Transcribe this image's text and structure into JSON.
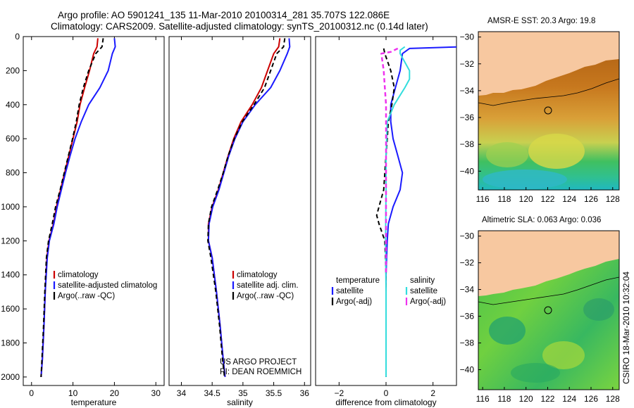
{
  "header": {
    "line1": "Argo profile: AO 5901241_135 11-Mar-2010 20100314_281 35.707S 122.086E",
    "line2": "Climatology: CARS2009. Satellite-adjusted climatology: synTS_20100312.nc (0.14d later)"
  },
  "colors": {
    "red": "#cc0000",
    "blue": "#1a1aff",
    "black": "#000000",
    "cyan": "#33dddd",
    "magenta": "#ee33ee",
    "land": "#f7c8a0"
  },
  "chart_data": [
    {
      "id": "temperature",
      "type": "line",
      "xlabel": "temperature",
      "ylabel": "",
      "xlim": [
        -2,
        32
      ],
      "ylim": [
        2050,
        0
      ],
      "xticks": [
        0,
        10,
        20,
        30
      ],
      "yticks": [
        0,
        200,
        400,
        600,
        800,
        1000,
        1200,
        1400,
        1600,
        1800,
        2000
      ],
      "legend": [
        "climatology",
        "satellite-adjusted climatolog",
        "Argo(..raw -QC)"
      ],
      "series": [
        {
          "name": "climatology",
          "color": "red",
          "dash": "",
          "x": [
            16.0,
            15.8,
            15.0,
            14.0,
            12.8,
            11.7,
            11.0,
            10.0,
            9.0,
            8.0,
            7.0,
            6.0,
            5.3,
            4.2,
            3.7,
            3.3,
            3.0,
            2.6,
            2.3
          ],
          "y": [
            10,
            60,
            100,
            200,
            300,
            400,
            500,
            600,
            700,
            800,
            900,
            1000,
            1100,
            1200,
            1300,
            1500,
            1700,
            1900,
            2000
          ]
        },
        {
          "name": "satellite-adjusted climatolog",
          "color": "blue",
          "dash": "",
          "x": [
            20.0,
            20.2,
            19.5,
            18.5,
            16.5,
            13.8,
            12.0,
            10.5,
            9.3,
            8.2,
            7.2,
            6.2,
            5.4,
            4.3,
            3.8,
            3.3,
            3.0,
            2.6,
            2.3
          ],
          "y": [
            10,
            60,
            100,
            200,
            300,
            400,
            500,
            600,
            700,
            800,
            900,
            1000,
            1100,
            1200,
            1300,
            1500,
            1700,
            1900,
            2000
          ]
        },
        {
          "name": "Argo(..raw -QC)",
          "color": "black",
          "dash": "6,4",
          "x": [
            17.3,
            17.0,
            15.5,
            13.8,
            12.5,
            11.5,
            10.8,
            9.9,
            8.9,
            7.9,
            6.9,
            5.8,
            5.0,
            4.1,
            3.6,
            3.2,
            2.9,
            2.5,
            2.3
          ],
          "y": [
            10,
            60,
            100,
            200,
            300,
            400,
            500,
            600,
            700,
            800,
            900,
            1000,
            1100,
            1200,
            1300,
            1500,
            1700,
            1900,
            2000
          ]
        }
      ]
    },
    {
      "id": "salinity",
      "type": "line",
      "xlabel": "salinity",
      "ylabel": "",
      "xlim": [
        33.8,
        36.1
      ],
      "ylim": [
        2050,
        0
      ],
      "xticks": [
        34,
        34.5,
        35,
        35.5,
        36
      ],
      "xticklabels": [
        "34",
        "34.5",
        "35",
        "35.5",
        "36"
      ],
      "yticks": [],
      "legend": [
        "climatology",
        "satellite adj. clim.",
        "Argo(..raw -QC)"
      ],
      "series": [
        {
          "name": "climatology",
          "color": "red",
          "dash": "",
          "x": [
            35.6,
            35.58,
            35.5,
            35.4,
            35.3,
            35.15,
            34.97,
            34.85,
            34.76,
            34.68,
            34.6,
            34.5,
            34.44,
            34.44,
            34.5,
            34.57,
            34.63,
            34.68,
            34.71
          ],
          "y": [
            10,
            60,
            100,
            200,
            300,
            400,
            500,
            600,
            700,
            800,
            900,
            1000,
            1100,
            1200,
            1300,
            1500,
            1700,
            1900,
            2000
          ]
        },
        {
          "name": "satellite adj. clim.",
          "color": "blue",
          "dash": "",
          "x": [
            35.75,
            35.76,
            35.72,
            35.6,
            35.45,
            35.2,
            35.0,
            34.87,
            34.77,
            34.69,
            34.61,
            34.51,
            34.45,
            34.44,
            34.5,
            34.57,
            34.63,
            34.68,
            34.71
          ],
          "y": [
            10,
            60,
            100,
            200,
            300,
            400,
            500,
            600,
            700,
            800,
            900,
            1000,
            1100,
            1200,
            1300,
            1500,
            1700,
            1900,
            2000
          ]
        },
        {
          "name": "Argo(..raw -QC)",
          "color": "black",
          "dash": "6,4",
          "x": [
            35.68,
            35.66,
            35.55,
            35.45,
            35.35,
            35.18,
            34.99,
            34.86,
            34.76,
            34.68,
            34.59,
            34.49,
            34.44,
            34.43,
            34.48,
            34.56,
            34.62,
            34.67,
            34.7
          ],
          "y": [
            10,
            60,
            100,
            200,
            300,
            400,
            500,
            600,
            700,
            800,
            900,
            1000,
            1100,
            1200,
            1300,
            1500,
            1700,
            1900,
            2000
          ]
        }
      ],
      "annotation": [
        "US ARGO PROJECT",
        "PI: DEAN ROEMMICH"
      ]
    },
    {
      "id": "difference",
      "type": "line",
      "xlabel": "difference from climatology",
      "ylabel": "",
      "xlim": [
        -3,
        3
      ],
      "ylim": [
        2050,
        0
      ],
      "xticks": [
        -2,
        0,
        2
      ],
      "yticks": [],
      "legend": [
        "temperature",
        "satellite",
        "Argo(-adj)",
        "salinity",
        "satellite",
        "Argo(-adj)"
      ],
      "series": [
        {
          "name": "temperature satellite",
          "color": "blue",
          "dash": "",
          "x": [
            4.0,
            3.2,
            1.0,
            0.7,
            0.6,
            0.4,
            0.2,
            0.2,
            0.3,
            0.5,
            0.7,
            0.6,
            0.3,
            0.1,
            0.05,
            0.0,
            0.0,
            0.0,
            0.0
          ],
          "y": [
            50,
            60,
            70,
            100,
            200,
            300,
            400,
            500,
            600,
            700,
            800,
            900,
            1000,
            1100,
            1200,
            1400,
            1600,
            1800,
            2000
          ]
        },
        {
          "name": "temperature Argo(-adj)",
          "color": "black",
          "dash": "6,4",
          "x": [
            -0.1,
            -0.05,
            0.2,
            0.35,
            0.25,
            0.1,
            0.05,
            0.0,
            -0.05,
            -0.1,
            -0.2,
            -0.3,
            -0.4,
            -0.3,
            -0.05,
            0.0,
            0.0,
            0.0,
            0.0
          ],
          "y": [
            70,
            100,
            200,
            300,
            400,
            500,
            600,
            700,
            800,
            900,
            950,
            1000,
            1050,
            1100,
            1200,
            1400,
            1600,
            1800,
            2000
          ]
        },
        {
          "name": "salinity satellite",
          "color": "cyan",
          "dash": "",
          "x": [
            0.8,
            0.6,
            0.6,
            1.0,
            1.0,
            0.8,
            0.35,
            0.05,
            0.0,
            0.0,
            -0.02,
            0.0,
            0.0,
            0.0
          ],
          "y": [
            60,
            80,
            100,
            200,
            250,
            300,
            400,
            500,
            700,
            900,
            1200,
            1500,
            1800,
            2000
          ]
        },
        {
          "name": "salinity Argo(-adj)",
          "color": "magenta",
          "dash": "6,4",
          "x": [
            0.5,
            0.2,
            -0.2,
            -0.1,
            -0.05,
            0.0,
            0.0,
            0.0,
            0.0
          ],
          "y": [
            70,
            90,
            100,
            200,
            300,
            400,
            600,
            1000,
            1400
          ],
          "strong": true
        }
      ]
    }
  ],
  "maps": [
    {
      "id": "sst-map",
      "title": "AMSR-E SST: 20.3 Argo: 19.8",
      "xticks": [
        "116",
        "118",
        "120",
        "122",
        "124",
        "126",
        "128"
      ],
      "yticks": [
        "-30",
        "-32",
        "-34",
        "-36",
        "-38",
        "-40"
      ],
      "argo_position": {
        "lon": 122.086,
        "lat": -35.707
      }
    },
    {
      "id": "sla-map",
      "title": "Altimetric SLA: 0.063 Argo: 0.036",
      "xticks": [
        "116",
        "118",
        "120",
        "122",
        "124",
        "126",
        "128"
      ],
      "yticks": [
        "-30",
        "-32",
        "-34",
        "-36",
        "-38",
        "-40"
      ],
      "argo_position": {
        "lon": 122.086,
        "lat": -35.707
      }
    }
  ],
  "side_stamp": "CSIRO 18-Mar-2010 10:32:04"
}
